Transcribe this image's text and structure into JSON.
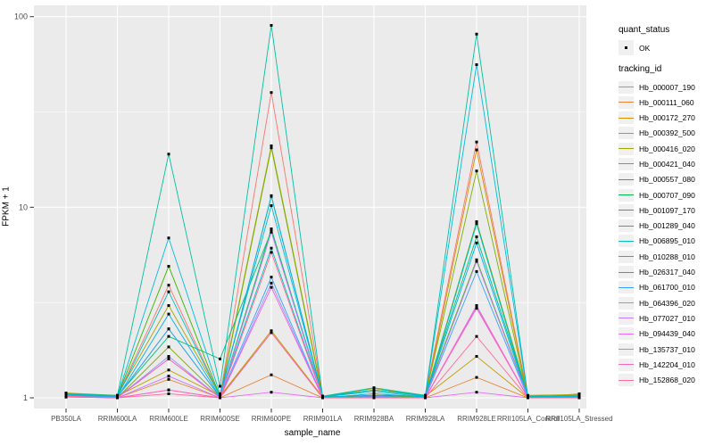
{
  "figure": {
    "background": "#FFFFFF",
    "panel_background": "#EBEBEB",
    "grid_color": "#FFFFFF",
    "tick_label_color": "#4D4D4D",
    "point_color": "#000000"
  },
  "legend": {
    "quant_title": "quant_status",
    "quant_items": [
      {
        "label": "OK"
      }
    ],
    "tracking_title": "tracking_id"
  },
  "chart_data": {
    "type": "line",
    "title": "",
    "xlabel": "sample_name",
    "ylabel": "FPKM + 1",
    "y_scale": "log10",
    "ylim": [
      1,
      111
    ],
    "y_ticks": [
      1,
      10,
      100
    ],
    "y_tick_labels": [
      "1",
      "10",
      "100"
    ],
    "grid": true,
    "legend_position": "right",
    "marker": "point",
    "marker_color": "#000000",
    "categories": [
      "PB350LA",
      "RRIM600LA",
      "RRIM600LE",
      "RRIM600SE",
      "RRIM600PE",
      "RRIM901LA",
      "RRIM928BA",
      "RRIM928LA",
      "RRIM928LE",
      "RRII105LA_Control",
      "RRII105LA_Stressed"
    ],
    "series": [
      {
        "name": "Hb_000007_190",
        "color": "#F8766D",
        "values": [
          1.05,
          1.02,
          3.9,
          1.02,
          40,
          1.02,
          1.0,
          1.03,
          22,
          1.02,
          1.0
        ]
      },
      {
        "name": "Hb_000111_060",
        "color": "#EA8331",
        "values": [
          1.02,
          1.0,
          1.25,
          1.0,
          1.32,
          1.0,
          1.0,
          1.0,
          1.28,
          1.0,
          1.0
        ]
      },
      {
        "name": "Hb_000172_270",
        "color": "#D89000",
        "values": [
          1.03,
          1.01,
          1.6,
          1.01,
          2.2,
          1.0,
          1.05,
          1.0,
          20,
          1.01,
          1.02
        ]
      },
      {
        "name": "Hb_000392_500",
        "color": "#C09B00",
        "values": [
          1.04,
          1.02,
          1.4,
          1.02,
          2.25,
          1.01,
          1.1,
          1.02,
          1.65,
          1.0,
          1.05
        ]
      },
      {
        "name": "Hb_000416_020",
        "color": "#A3A500",
        "values": [
          1.06,
          1.03,
          3.05,
          1.03,
          21,
          1.02,
          1.12,
          1.02,
          8.4,
          1.03,
          1.04
        ]
      },
      {
        "name": "Hb_000421_040",
        "color": "#7CAE00",
        "values": [
          1.03,
          1.0,
          1.85,
          1.01,
          20.5,
          1.0,
          1.02,
          1.01,
          15.5,
          1.0,
          1.01
        ]
      },
      {
        "name": "Hb_000557_080",
        "color": "#39B600",
        "values": [
          1.05,
          1.02,
          4.9,
          1.02,
          11.4,
          1.01,
          1.03,
          1.02,
          5.3,
          1.01,
          1.0
        ]
      },
      {
        "name": "Hb_000707_090",
        "color": "#00BB4E",
        "values": [
          1.02,
          1.01,
          2.3,
          1.01,
          7.7,
          1.0,
          1.02,
          1.0,
          8.3,
          1.0,
          1.0
        ]
      },
      {
        "name": "Hb_001097_170",
        "color": "#00BF7D",
        "values": [
          1.04,
          1.02,
          2.1,
          1.6,
          7.5,
          1.02,
          1.1,
          1.03,
          7.0,
          1.02,
          1.02
        ]
      },
      {
        "name": "Hb_001289_040",
        "color": "#00C1A3",
        "values": [
          1.05,
          1.03,
          19,
          1.15,
          90,
          1.02,
          1.13,
          1.03,
          81,
          1.02,
          1.03
        ]
      },
      {
        "name": "Hb_006895_010",
        "color": "#00BFC4",
        "values": [
          1.03,
          1.01,
          3.6,
          1.02,
          6.1,
          1.01,
          1.08,
          1.01,
          8.2,
          1.01,
          1.01
        ]
      },
      {
        "name": "Hb_010288_010",
        "color": "#00BAE0",
        "values": [
          1.04,
          1.02,
          6.9,
          1.05,
          10.2,
          1.01,
          1.1,
          1.02,
          56,
          1.01,
          1.02
        ]
      },
      {
        "name": "Hb_026317_040",
        "color": "#00B0F6",
        "values": [
          1.02,
          1.0,
          2.75,
          1.01,
          11.5,
          1.0,
          1.05,
          1.01,
          6.5,
          1.0,
          1.0
        ]
      },
      {
        "name": "Hb_061700_010",
        "color": "#35A2FF",
        "values": [
          1.03,
          1.01,
          2.3,
          1.01,
          4.3,
          1.0,
          1.02,
          1.0,
          4.6,
          1.0,
          1.01
        ]
      },
      {
        "name": "Hb_064396_020",
        "color": "#9590FF",
        "values": [
          1.02,
          1.0,
          1.65,
          1.0,
          4.0,
          1.0,
          1.01,
          1.0,
          3.0,
          1.0,
          1.0
        ]
      },
      {
        "name": "Hb_077027_010",
        "color": "#C77CFF",
        "values": [
          1.01,
          1.0,
          1.3,
          1.0,
          7.4,
          1.0,
          1.0,
          1.0,
          5.2,
          1.0,
          1.0
        ]
      },
      {
        "name": "Hb_094439_040",
        "color": "#E76BF3",
        "values": [
          1.01,
          1.0,
          1.1,
          1.0,
          1.07,
          1.0,
          1.0,
          1.0,
          1.07,
          1.0,
          1.0
        ]
      },
      {
        "name": "Hb_135737_010",
        "color": "#FA62DB",
        "values": [
          1.02,
          1.0,
          1.6,
          1.0,
          3.8,
          1.0,
          1.01,
          1.0,
          3.05,
          1.0,
          1.0
        ]
      },
      {
        "name": "Hb_142204_010",
        "color": "#FF62BC",
        "values": [
          1.01,
          1.0,
          1.1,
          1.0,
          2.2,
          1.0,
          1.0,
          1.0,
          2.95,
          1.0,
          1.0
        ]
      },
      {
        "name": "Hb_152868_020",
        "color": "#FF6A98",
        "values": [
          1.02,
          1.0,
          1.05,
          1.0,
          5.8,
          1.0,
          1.0,
          1.0,
          2.1,
          1.0,
          1.0
        ]
      }
    ]
  }
}
